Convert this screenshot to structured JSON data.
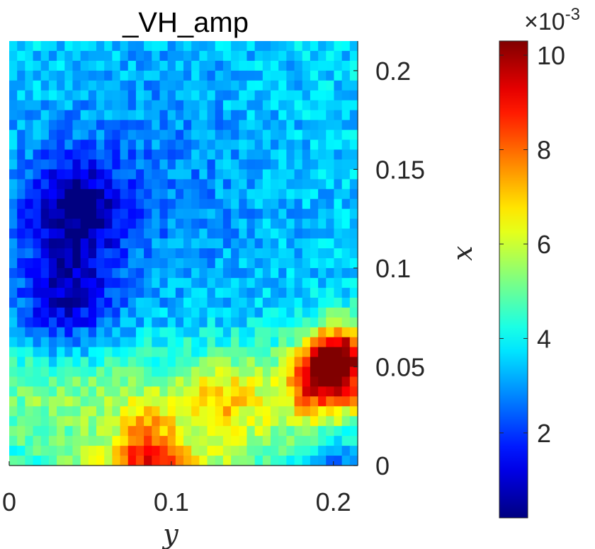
{
  "chart_data": {
    "type": "heatmap",
    "title": "_VH_amp",
    "xlabel": "y",
    "ylabel": "x",
    "xlim": [
      0,
      0.215
    ],
    "ylim": [
      0,
      0.215
    ],
    "x_ticks": [
      "0",
      "0.1",
      "0.2"
    ],
    "x_tick_values": [
      0,
      0.1,
      0.2
    ],
    "y_ticks": [
      "0",
      "0.05",
      "0.1",
      "0.15",
      "0.2"
    ],
    "y_tick_values": [
      0,
      0.05,
      0.1,
      0.15,
      0.2
    ],
    "y_axis_location": "right",
    "grid_cols": 44,
    "grid_rows": 43,
    "colormap": "jet",
    "colorbar": {
      "location": "right",
      "clim": [
        0.2,
        10.3
      ],
      "ticks": [
        "2",
        "4",
        "6",
        "8",
        "10"
      ],
      "tick_values": [
        2,
        4,
        6,
        8,
        10
      ],
      "exponent_prefix": "×10",
      "exponent": "-3"
    },
    "hotspots": [
      {
        "y": 0.205,
        "x": 0.055,
        "value": 10.2
      },
      {
        "y": 0.19,
        "x": 0.045,
        "value": 8.6
      },
      {
        "y": 0.085,
        "x": 0.01,
        "value": 7.8
      },
      {
        "y": 0.13,
        "x": 0.035,
        "value": 6.5
      }
    ],
    "coldspots": [
      {
        "y": 0.04,
        "x": 0.13,
        "value": 0.8
      },
      {
        "y": 0.035,
        "x": 0.085,
        "value": 1.2
      },
      {
        "y": 0.205,
        "x": 0.005,
        "value": 1.6
      }
    ],
    "background_value": 3.6
  }
}
